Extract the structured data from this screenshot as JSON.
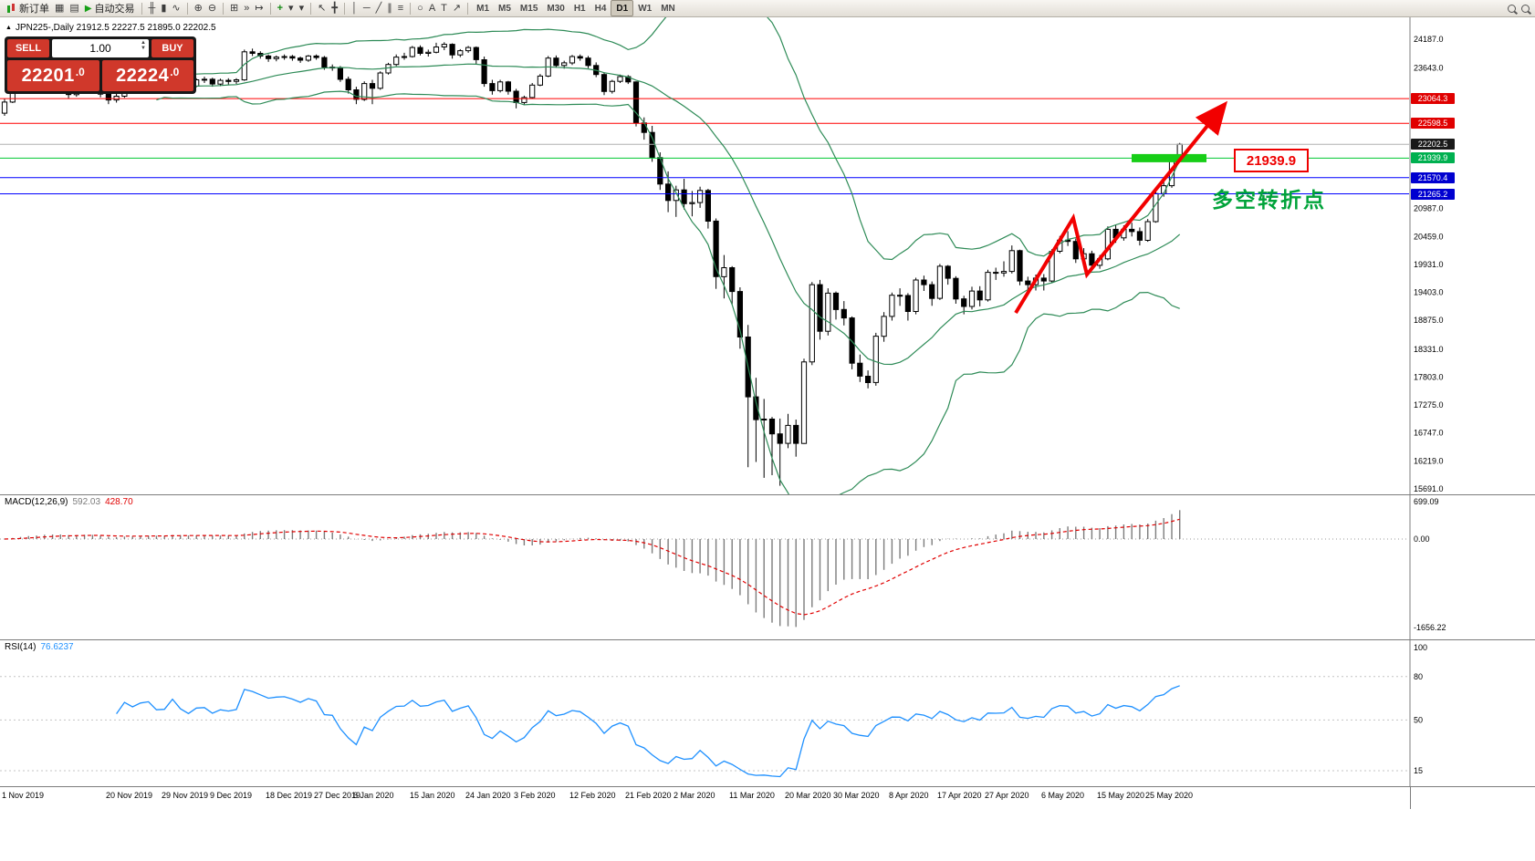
{
  "toolbar": {
    "items": [
      {
        "name": "new-order",
        "label": "新订单",
        "icon": "candles"
      },
      {
        "name": "chart-window",
        "glyph": "▦"
      },
      {
        "name": "print",
        "glyph": "▤"
      },
      {
        "name": "autotrading",
        "label": "自动交易",
        "icon": "play"
      },
      {
        "sep": 1
      },
      {
        "name": "bar-chart",
        "glyph": "╫"
      },
      {
        "name": "candlestick-chart",
        "glyph": "▮"
      },
      {
        "name": "line-chart",
        "glyph": "∿"
      },
      {
        "sep": 1
      },
      {
        "name": "zoom-in",
        "glyph": "⊕"
      },
      {
        "name": "zoom-out",
        "glyph": "⊖"
      },
      {
        "sep": 1
      },
      {
        "name": "tile-windows",
        "glyph": "⊞"
      },
      {
        "name": "auto-scroll",
        "glyph": "»"
      },
      {
        "name": "chart-shift",
        "glyph": "↦"
      },
      {
        "sep": 1
      },
      {
        "name": "indicators",
        "glyph": "+",
        "cls": "green"
      },
      {
        "name": "periods-dropdown",
        "glyph": "▾"
      },
      {
        "name": "templates-dropdown",
        "glyph": "▾"
      },
      {
        "sep": 1
      },
      {
        "name": "cursor",
        "glyph": "↖"
      },
      {
        "name": "crosshair",
        "glyph": "╋"
      },
      {
        "sep": 1
      },
      {
        "name": "vertical-line",
        "glyph": "│"
      },
      {
        "name": "horizontal-line",
        "glyph": "─"
      },
      {
        "name": "trendline",
        "glyph": "╱"
      },
      {
        "name": "channel",
        "glyph": "∥"
      },
      {
        "name": "fibonacci",
        "glyph": "≡"
      },
      {
        "sep": 1
      },
      {
        "name": "shapes",
        "glyph": "○"
      },
      {
        "name": "text",
        "glyph": "A"
      },
      {
        "name": "text-label",
        "glyph": "T"
      },
      {
        "name": "arrows",
        "glyph": "↗"
      },
      {
        "sep": 1
      }
    ],
    "timeframes": [
      "M1",
      "M5",
      "M15",
      "M30",
      "H1",
      "H4",
      "D1",
      "W1",
      "MN"
    ],
    "active_timeframe": "D1",
    "right_icons": [
      "magnifier-1",
      "magnifier-2"
    ]
  },
  "chart_header": {
    "marker": "▲",
    "title": "JPN225-,Daily   21912.5 22227.5 21895.0 22202.5"
  },
  "trade_panel": {
    "sell_label": "SELL",
    "buy_label": "BUY",
    "volume": "1.00",
    "sell_big": "22201",
    "sell_small": ".0",
    "buy_big": "22224",
    "buy_small": ".0"
  },
  "annotations": {
    "price_label": "21939.9",
    "note": "多空转折点",
    "highlight_price": 21939.9
  },
  "levels": [
    {
      "price": 23064.3,
      "label": "23064.3",
      "line": "#ff0000",
      "badge": "#e00000"
    },
    {
      "price": 22598.5,
      "label": "22598.5",
      "line": "#ff0000",
      "badge": "#e00000"
    },
    {
      "price": 22202.5,
      "label": "22202.5",
      "line": "#b0b0b0",
      "badge": "#1a1a1a"
    },
    {
      "price": 21939.9,
      "label": "21939.9",
      "line": "#00c832",
      "badge": "#00b050"
    },
    {
      "price": 21570.4,
      "label": "21570.4",
      "line": "#0000ff",
      "badge": "#0000d0"
    },
    {
      "price": 21265.2,
      "label": "21265.2",
      "line": "#0000ff",
      "badge": "#0000d0"
    }
  ],
  "y_axis_ticks": [
    "24187.0",
    "23643.0",
    "20987.0",
    "20459.0",
    "19931.0",
    "19403.0",
    "18875.0",
    "18331.0",
    "17803.0",
    "17275.0",
    "16747.0",
    "16219.0",
    "15691.0"
  ],
  "macd": {
    "label": "MACD(12,26,9)",
    "value_main": "592.03",
    "value_signal": "428.70",
    "axis": [
      {
        "v": 699.09,
        "t": "699.09"
      },
      {
        "v": 0,
        "t": "0.00"
      },
      {
        "v": -1656.22,
        "t": "-1656.22"
      }
    ]
  },
  "rsi": {
    "label": "RSI(14)",
    "value": "76.6237",
    "axis": [
      {
        "v": 100,
        "t": "100"
      },
      {
        "v": 80,
        "t": "80"
      },
      {
        "v": 50,
        "t": "50"
      },
      {
        "v": 15,
        "t": "15"
      }
    ],
    "dashed_levels": [
      80,
      50,
      15
    ]
  },
  "x_labels": [
    {
      "text": "1 Nov 2019",
      "i": 0
    },
    {
      "text": "20 Nov 2019",
      "i": 13
    },
    {
      "text": "29 Nov 2019",
      "i": 20
    },
    {
      "text": "9 Dec 2019",
      "i": 26
    },
    {
      "text": "18 Dec 2019",
      "i": 33
    },
    {
      "text": "27 Dec 2019",
      "i": 39
    },
    {
      "text": "6 Jan 2020",
      "i": 44
    },
    {
      "text": "15 Jan 2020",
      "i": 51
    },
    {
      "text": "24 Jan 2020",
      "i": 58
    },
    {
      "text": "3 Feb 2020",
      "i": 64
    },
    {
      "text": "12 Feb 2020",
      "i": 71
    },
    {
      "text": "21 Feb 2020",
      "i": 78
    },
    {
      "text": "2 Mar 2020",
      "i": 84
    },
    {
      "text": "11 Mar 2020",
      "i": 91
    },
    {
      "text": "20 Mar 2020",
      "i": 98
    },
    {
      "text": "30 Mar 2020",
      "i": 104
    },
    {
      "text": "8 Apr 2020",
      "i": 111
    },
    {
      "text": "17 Apr 2020",
      "i": 117
    },
    {
      "text": "27 Apr 2020",
      "i": 123
    },
    {
      "text": "6 May 2020",
      "i": 130
    },
    {
      "text": "15 May 2020",
      "i": 137
    },
    {
      "text": "25 May 2020",
      "i": 143
    }
  ],
  "chart_data": {
    "type": "candlestick",
    "symbol": "JPN225",
    "period": "Daily",
    "price_range": [
      15691.0,
      24187.0
    ],
    "overlays": {
      "bollinger_period": 20,
      "bollinger_dev": 2,
      "bollinger_color": "#2E8B57"
    },
    "candles": [
      [
        22790,
        23060,
        22740,
        23000
      ],
      [
        23000,
        23290,
        22980,
        23250
      ],
      [
        23250,
        23350,
        23180,
        23300
      ],
      [
        23300,
        23380,
        23240,
        23320
      ],
      [
        23320,
        23370,
        23210,
        23280
      ],
      [
        23280,
        23420,
        23260,
        23390
      ],
      [
        23390,
        23430,
        23290,
        23330
      ],
      [
        23330,
        23380,
        23230,
        23280
      ],
      [
        23280,
        23310,
        23070,
        23140
      ],
      [
        23140,
        23330,
        23100,
        23300
      ],
      [
        23300,
        23380,
        23260,
        23340
      ],
      [
        23340,
        23390,
        23250,
        23300
      ],
      [
        23300,
        23330,
        23090,
        23150
      ],
      [
        23150,
        23190,
        22960,
        23040
      ],
      [
        23040,
        23160,
        22990,
        23110
      ],
      [
        23110,
        23400,
        23080,
        23360
      ],
      [
        23360,
        23420,
        23240,
        23290
      ],
      [
        23290,
        23420,
        23250,
        23380
      ],
      [
        23380,
        23460,
        23330,
        23410
      ],
      [
        23410,
        23440,
        23240,
        23290
      ],
      [
        23290,
        23350,
        23220,
        23300
      ],
      [
        23300,
        23560,
        23270,
        23530
      ],
      [
        23530,
        23550,
        23330,
        23380
      ],
      [
        23380,
        23410,
        23210,
        23300
      ],
      [
        23300,
        23450,
        23280,
        23420
      ],
      [
        23420,
        23480,
        23360,
        23430
      ],
      [
        23430,
        23460,
        23290,
        23340
      ],
      [
        23340,
        23440,
        23300,
        23410
      ],
      [
        23410,
        23450,
        23330,
        23390
      ],
      [
        23390,
        23450,
        23340,
        23420
      ],
      [
        23420,
        23990,
        23400,
        23950
      ],
      [
        23950,
        24010,
        23870,
        23920
      ],
      [
        23920,
        23960,
        23820,
        23870
      ],
      [
        23870,
        23900,
        23760,
        23820
      ],
      [
        23820,
        23880,
        23770,
        23850
      ],
      [
        23850,
        23900,
        23800,
        23860
      ],
      [
        23860,
        23890,
        23780,
        23830
      ],
      [
        23830,
        23860,
        23740,
        23790
      ],
      [
        23790,
        23890,
        23760,
        23870
      ],
      [
        23870,
        23900,
        23800,
        23840
      ],
      [
        23840,
        23870,
        23610,
        23660
      ],
      [
        23660,
        23710,
        23590,
        23650
      ],
      [
        23650,
        23680,
        23380,
        23430
      ],
      [
        23430,
        23480,
        23160,
        23230
      ],
      [
        23230,
        23290,
        22960,
        23050
      ],
      [
        23050,
        23390,
        23020,
        23350
      ],
      [
        23350,
        23420,
        22960,
        23260
      ],
      [
        23260,
        23580,
        23230,
        23550
      ],
      [
        23550,
        23740,
        23520,
        23710
      ],
      [
        23710,
        23900,
        23680,
        23850
      ],
      [
        23850,
        23930,
        23800,
        23860
      ],
      [
        23860,
        24060,
        23840,
        24030
      ],
      [
        24030,
        24070,
        23880,
        23920
      ],
      [
        23920,
        23990,
        23860,
        23940
      ],
      [
        23940,
        24120,
        23920,
        24040
      ],
      [
        24040,
        24130,
        23980,
        24090
      ],
      [
        24090,
        24110,
        23820,
        23890
      ],
      [
        23890,
        24000,
        23850,
        23970
      ],
      [
        23970,
        24060,
        23930,
        24030
      ],
      [
        24030,
        24050,
        23710,
        23800
      ],
      [
        23800,
        23860,
        23290,
        23350
      ],
      [
        23350,
        23420,
        23140,
        23215
      ],
      [
        23215,
        23420,
        23180,
        23380
      ],
      [
        23380,
        23400,
        23140,
        23205
      ],
      [
        23205,
        23250,
        22880,
        22990
      ],
      [
        22990,
        23120,
        22940,
        23085
      ],
      [
        23085,
        23360,
        23060,
        23320
      ],
      [
        23320,
        23530,
        23300,
        23490
      ],
      [
        23490,
        23870,
        23470,
        23830
      ],
      [
        23830,
        23880,
        23650,
        23690
      ],
      [
        23690,
        23780,
        23630,
        23740
      ],
      [
        23740,
        23890,
        23700,
        23860
      ],
      [
        23860,
        23900,
        23780,
        23830
      ],
      [
        23830,
        23870,
        23640,
        23690
      ],
      [
        23690,
        23750,
        23470,
        23520
      ],
      [
        23520,
        23560,
        23130,
        23200
      ],
      [
        23200,
        23420,
        23160,
        23390
      ],
      [
        23390,
        23520,
        23360,
        23480
      ],
      [
        23480,
        23510,
        23340,
        23380
      ],
      [
        23380,
        23390,
        22540,
        22605
      ],
      [
        22605,
        22710,
        22290,
        22425
      ],
      [
        22425,
        22550,
        21870,
        21950
      ],
      [
        21950,
        22050,
        21340,
        21450
      ],
      [
        21450,
        21690,
        20920,
        21140
      ],
      [
        21140,
        21420,
        20830,
        21340
      ],
      [
        21340,
        21550,
        20970,
        21080
      ],
      [
        21080,
        21320,
        20840,
        21100
      ],
      [
        21100,
        21400,
        21000,
        21330
      ],
      [
        21330,
        21360,
        20610,
        20750
      ],
      [
        20750,
        20800,
        19470,
        19700
      ],
      [
        19700,
        20110,
        19290,
        19870
      ],
      [
        19870,
        19900,
        19170,
        19420
      ],
      [
        19420,
        19500,
        18340,
        18560
      ],
      [
        18560,
        18790,
        16100,
        17430
      ],
      [
        17430,
        17790,
        16200,
        17000
      ],
      [
        17000,
        17390,
        15900,
        17010
      ],
      [
        17010,
        17050,
        15950,
        16730
      ],
      [
        16730,
        17020,
        15750,
        16550
      ],
      [
        16550,
        17110,
        16460,
        16890
      ],
      [
        16890,
        17000,
        16300,
        16550
      ],
      [
        16550,
        18150,
        16540,
        18090
      ],
      [
        18090,
        19600,
        18030,
        19550
      ],
      [
        19550,
        19640,
        18510,
        18670
      ],
      [
        18670,
        19480,
        18590,
        19390
      ],
      [
        19390,
        19420,
        18890,
        19080
      ],
      [
        19080,
        19240,
        18780,
        18920
      ],
      [
        18920,
        18950,
        17950,
        18065
      ],
      [
        18065,
        18230,
        17710,
        17820
      ],
      [
        17820,
        17930,
        17590,
        17700
      ],
      [
        17700,
        18640,
        17640,
        18575
      ],
      [
        18575,
        19030,
        18470,
        18950
      ],
      [
        18950,
        19400,
        18870,
        19350
      ],
      [
        19350,
        19480,
        19150,
        19345
      ],
      [
        19345,
        19390,
        18870,
        19043
      ],
      [
        19043,
        19680,
        18990,
        19638
      ],
      [
        19638,
        19720,
        19430,
        19550
      ],
      [
        19550,
        19610,
        19150,
        19290
      ],
      [
        19290,
        19940,
        19260,
        19897
      ],
      [
        19897,
        19920,
        19550,
        19669
      ],
      [
        19669,
        19710,
        19190,
        19280
      ],
      [
        19280,
        19340,
        18990,
        19137
      ],
      [
        19137,
        19510,
        19080,
        19429
      ],
      [
        19429,
        19520,
        19140,
        19262
      ],
      [
        19262,
        19830,
        19230,
        19783
      ],
      [
        19783,
        19870,
        19640,
        19771
      ],
      [
        19771,
        19990,
        19700,
        19800
      ],
      [
        19800,
        20290,
        19760,
        20193
      ],
      [
        20193,
        20210,
        19540,
        19619
      ],
      [
        19619,
        19700,
        19380,
        19550
      ],
      [
        19550,
        19740,
        19440,
        19674
      ],
      [
        19674,
        19750,
        19440,
        19619
      ],
      [
        19619,
        20220,
        19580,
        20179
      ],
      [
        20179,
        20470,
        20140,
        20390
      ],
      [
        20390,
        20560,
        20280,
        20366
      ],
      [
        20366,
        20420,
        19960,
        20037
      ],
      [
        20037,
        20240,
        19940,
        20133
      ],
      [
        20133,
        20190,
        19830,
        19915
      ],
      [
        19915,
        20110,
        19850,
        20037
      ],
      [
        20037,
        20650,
        20010,
        20595
      ],
      [
        20595,
        20680,
        20340,
        20433
      ],
      [
        20433,
        20670,
        20380,
        20595
      ],
      [
        20595,
        20720,
        20460,
        20552
      ],
      [
        20552,
        20630,
        20290,
        20388
      ],
      [
        20388,
        20790,
        20360,
        20741
      ],
      [
        20741,
        21330,
        20720,
        21271
      ],
      [
        21271,
        21540,
        21210,
        21419
      ],
      [
        21419,
        21950,
        21380,
        21916
      ],
      [
        21912.5,
        22227.5,
        21895.0,
        22202.5
      ]
    ]
  }
}
